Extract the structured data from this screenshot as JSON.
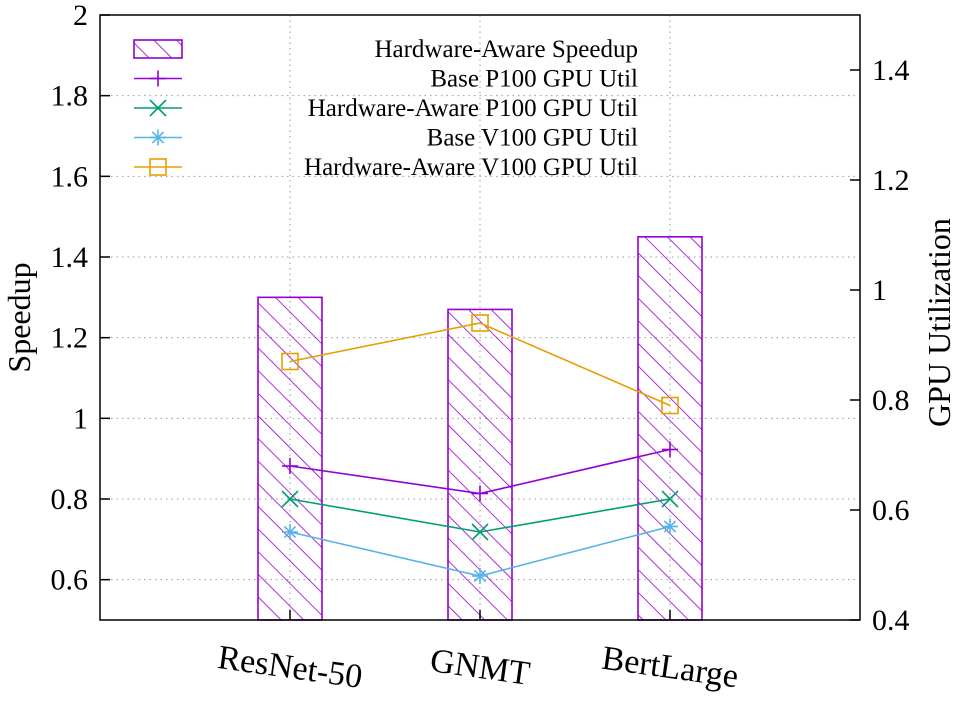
{
  "chart_data": {
    "type": "bar",
    "categories": [
      "ResNet-50",
      "GNMT",
      "BertLarge"
    ],
    "ylabel": "Speedup",
    "y2label": "GPU Utilization",
    "ylim": [
      0.5,
      2.0
    ],
    "y2lim": [
      0.4,
      1.5
    ],
    "yticks": [
      "0.6",
      "0.8",
      "1",
      "1.2",
      "1.4",
      "1.6",
      "1.8",
      "2"
    ],
    "y2ticks": [
      "0.4",
      "0.6",
      "0.8",
      "1",
      "1.2",
      "1.4"
    ],
    "grid": true,
    "legend_position": "top",
    "series": [
      {
        "name": "Hardware-Aware Speedup",
        "kind": "bar",
        "axis": "left",
        "values": [
          1.3,
          1.27,
          1.45
        ],
        "color": "#9400d3",
        "marker": "hatch"
      },
      {
        "name": "Base P100 GPU Util",
        "kind": "line",
        "axis": "right",
        "values": [
          0.68,
          0.63,
          0.71
        ],
        "color": "#9400d3",
        "marker": "plus"
      },
      {
        "name": "Hardware-Aware P100 GPU Util",
        "kind": "line",
        "axis": "right",
        "values": [
          0.62,
          0.56,
          0.62
        ],
        "color": "#009e73",
        "marker": "cross"
      },
      {
        "name": "Base V100 GPU Util",
        "kind": "line",
        "axis": "right",
        "values": [
          0.56,
          0.48,
          0.57
        ],
        "color": "#56b4e9",
        "marker": "star"
      },
      {
        "name": "Hardware-Aware V100 GPU Util",
        "kind": "line",
        "axis": "right",
        "values": [
          0.87,
          0.94,
          0.79
        ],
        "color": "#e69f00",
        "marker": "square"
      }
    ]
  }
}
